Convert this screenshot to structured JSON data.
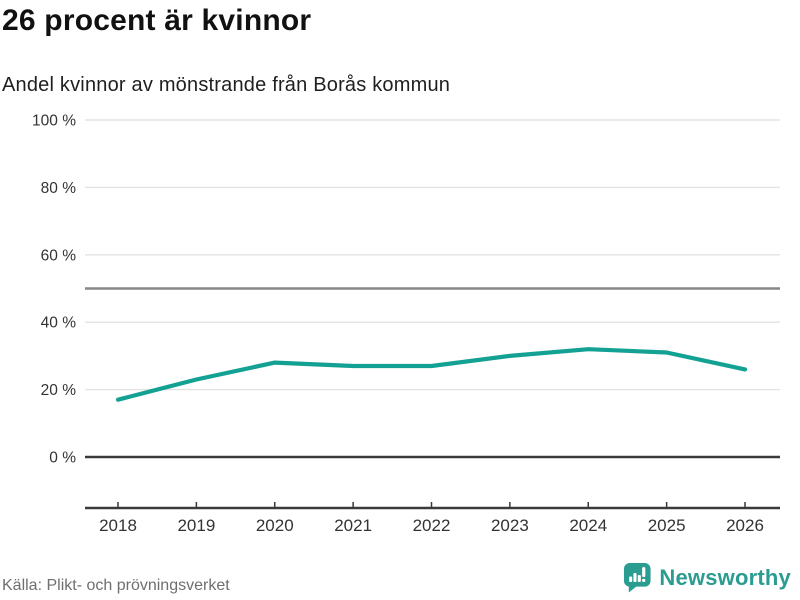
{
  "chart_data": {
    "type": "line",
    "title": "26 procent är kvinnor",
    "subtitle": "Andel kvinnor av mönstrande från Borås kommun",
    "x": [
      2018,
      2019,
      2020,
      2021,
      2022,
      2023,
      2024,
      2025,
      2026
    ],
    "series": [
      {
        "name": "Andel kvinnor av mönstrande",
        "values": [
          17,
          23,
          28,
          27,
          27,
          30,
          32,
          31,
          26
        ]
      }
    ],
    "unit": "%",
    "ylim": [
      0,
      100
    ],
    "yticks": [
      0,
      20,
      40,
      60,
      80,
      100
    ],
    "ytick_labels": [
      "0 %",
      "20 %",
      "40 %",
      "60 %",
      "80 %",
      "100 %"
    ],
    "reference_line_y": 50,
    "grid": true,
    "legend": "none",
    "line_color": "#12a192"
  },
  "footer": {
    "source": "Källa: Plikt- och prövningsverket"
  },
  "logo": {
    "text": "Newsworthy",
    "color": "#2b9c90"
  }
}
